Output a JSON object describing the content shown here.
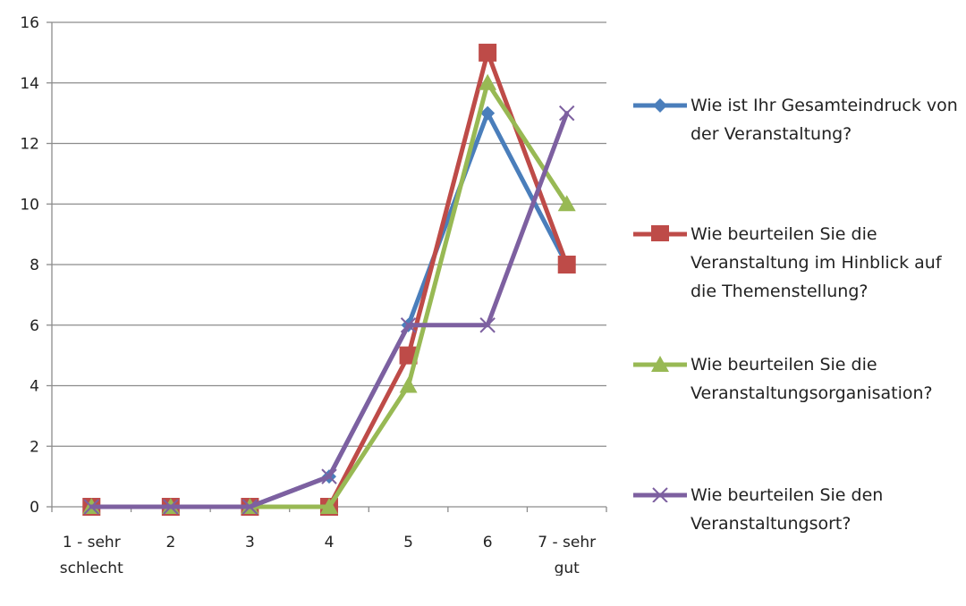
{
  "chart_data": {
    "type": "line",
    "title": "",
    "xlabel": "",
    "ylabel": "",
    "categories": [
      "1 - sehr\nschlecht",
      "2",
      "3",
      "4",
      "5",
      "6",
      "7 - sehr\ngut"
    ],
    "ylim": [
      0,
      16
    ],
    "yticks": [
      0,
      2,
      4,
      6,
      8,
      10,
      12,
      14,
      16
    ],
    "grid": true,
    "legend_position": "right",
    "series": [
      {
        "name": "Wie ist Ihr Gesamteindruck von der Veranstaltung?",
        "values": [
          0,
          0,
          0,
          1,
          6,
          13,
          8
        ],
        "color": "#4a7ebb",
        "marker": "diamond"
      },
      {
        "name": "Wie beurteilen Sie die Veranstaltung im Hinblick auf die Themenstellung?",
        "values": [
          0,
          0,
          0,
          0,
          5,
          15,
          8
        ],
        "color": "#be4b48",
        "marker": "square"
      },
      {
        "name": "Wie beurteilen Sie die Veranstaltungsorganisation?",
        "values": [
          0,
          0,
          0,
          0,
          4,
          14,
          10
        ],
        "color": "#98b954",
        "marker": "triangle"
      },
      {
        "name": "Wie beurteilen Sie den Veranstaltungsort?",
        "values": [
          0,
          0,
          0,
          1,
          6,
          6,
          13
        ],
        "color": "#7d60a0",
        "marker": "x"
      }
    ]
  }
}
